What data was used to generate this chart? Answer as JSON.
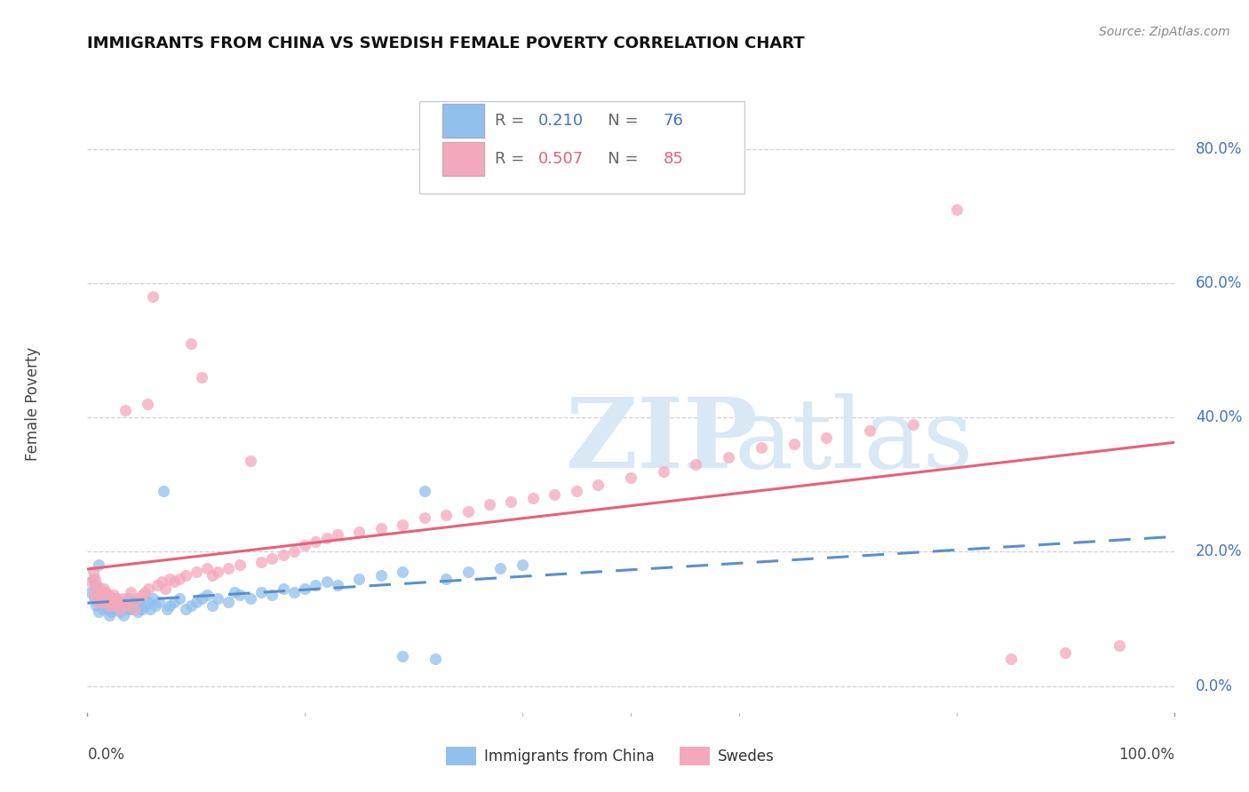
{
  "title": "IMMIGRANTS FROM CHINA VS SWEDISH FEMALE POVERTY CORRELATION CHART",
  "source": "Source: ZipAtlas.com",
  "ylabel": "Female Poverty",
  "ytick_labels": [
    "0.0%",
    "20.0%",
    "40.0%",
    "60.0%",
    "80.0%"
  ],
  "ytick_values": [
    0.0,
    0.2,
    0.4,
    0.6,
    0.8
  ],
  "xlim": [
    0.0,
    1.0
  ],
  "ylim": [
    -0.04,
    0.88
  ],
  "legend_label1": "Immigrants from China",
  "legend_label2": "Swedes",
  "R1": "0.210",
  "N1": "76",
  "R2": "0.507",
  "N2": "85",
  "color_blue": "#92C0EC",
  "color_pink": "#F4A8BC",
  "color_blue_line": "#5B8FCC",
  "color_pink_line": "#E8607A",
  "color_blue_text": "#4472C4",
  "color_pink_text": "#E8607A",
  "color_grid": "#D0D0D8",
  "color_ytick": "#4472C4",
  "blue_scatter_x": [
    0.003,
    0.005,
    0.006,
    0.007,
    0.008,
    0.009,
    0.01,
    0.011,
    0.012,
    0.013,
    0.014,
    0.015,
    0.016,
    0.017,
    0.018,
    0.019,
    0.02,
    0.021,
    0.022,
    0.024,
    0.025,
    0.027,
    0.028,
    0.03,
    0.032,
    0.033,
    0.035,
    0.037,
    0.038,
    0.04,
    0.042,
    0.044,
    0.046,
    0.048,
    0.05,
    0.053,
    0.056,
    0.058,
    0.06,
    0.063,
    0.066,
    0.07,
    0.073,
    0.076,
    0.08,
    0.085,
    0.09,
    0.095,
    0.1,
    0.105,
    0.11,
    0.115,
    0.12,
    0.13,
    0.135,
    0.14,
    0.15,
    0.16,
    0.17,
    0.18,
    0.19,
    0.2,
    0.21,
    0.22,
    0.23,
    0.25,
    0.27,
    0.29,
    0.31,
    0.33,
    0.35,
    0.38,
    0.4,
    0.29,
    0.32,
    0.01
  ],
  "blue_scatter_y": [
    0.14,
    0.16,
    0.13,
    0.15,
    0.12,
    0.145,
    0.11,
    0.13,
    0.125,
    0.135,
    0.115,
    0.14,
    0.125,
    0.13,
    0.12,
    0.115,
    0.105,
    0.12,
    0.11,
    0.13,
    0.115,
    0.125,
    0.12,
    0.11,
    0.125,
    0.105,
    0.12,
    0.115,
    0.13,
    0.115,
    0.12,
    0.125,
    0.11,
    0.12,
    0.115,
    0.12,
    0.125,
    0.115,
    0.13,
    0.12,
    0.125,
    0.29,
    0.115,
    0.12,
    0.125,
    0.13,
    0.115,
    0.12,
    0.125,
    0.13,
    0.135,
    0.12,
    0.13,
    0.125,
    0.14,
    0.135,
    0.13,
    0.14,
    0.135,
    0.145,
    0.14,
    0.145,
    0.15,
    0.155,
    0.15,
    0.16,
    0.165,
    0.17,
    0.29,
    0.16,
    0.17,
    0.175,
    0.18,
    0.045,
    0.04,
    0.18
  ],
  "pink_scatter_x": [
    0.003,
    0.005,
    0.006,
    0.007,
    0.008,
    0.009,
    0.01,
    0.011,
    0.012,
    0.013,
    0.014,
    0.015,
    0.016,
    0.017,
    0.018,
    0.019,
    0.02,
    0.021,
    0.022,
    0.024,
    0.025,
    0.027,
    0.028,
    0.03,
    0.032,
    0.035,
    0.038,
    0.04,
    0.043,
    0.046,
    0.05,
    0.053,
    0.056,
    0.06,
    0.064,
    0.068,
    0.072,
    0.076,
    0.08,
    0.085,
    0.09,
    0.095,
    0.1,
    0.105,
    0.11,
    0.115,
    0.12,
    0.13,
    0.14,
    0.15,
    0.16,
    0.17,
    0.18,
    0.19,
    0.2,
    0.21,
    0.22,
    0.23,
    0.25,
    0.27,
    0.29,
    0.31,
    0.33,
    0.35,
    0.37,
    0.39,
    0.41,
    0.43,
    0.45,
    0.47,
    0.5,
    0.53,
    0.56,
    0.59,
    0.62,
    0.65,
    0.68,
    0.72,
    0.76,
    0.8,
    0.85,
    0.9,
    0.95,
    0.035,
    0.055
  ],
  "pink_scatter_y": [
    0.155,
    0.17,
    0.14,
    0.16,
    0.13,
    0.15,
    0.125,
    0.145,
    0.135,
    0.14,
    0.125,
    0.145,
    0.13,
    0.14,
    0.125,
    0.135,
    0.12,
    0.13,
    0.125,
    0.135,
    0.12,
    0.13,
    0.125,
    0.115,
    0.13,
    0.12,
    0.125,
    0.14,
    0.115,
    0.13,
    0.135,
    0.14,
    0.145,
    0.58,
    0.15,
    0.155,
    0.145,
    0.16,
    0.155,
    0.16,
    0.165,
    0.51,
    0.17,
    0.46,
    0.175,
    0.165,
    0.17,
    0.175,
    0.18,
    0.335,
    0.185,
    0.19,
    0.195,
    0.2,
    0.21,
    0.215,
    0.22,
    0.225,
    0.23,
    0.235,
    0.24,
    0.25,
    0.255,
    0.26,
    0.27,
    0.275,
    0.28,
    0.285,
    0.29,
    0.3,
    0.31,
    0.32,
    0.33,
    0.34,
    0.355,
    0.36,
    0.37,
    0.38,
    0.39,
    0.71,
    0.04,
    0.05,
    0.06,
    0.41,
    0.42
  ]
}
